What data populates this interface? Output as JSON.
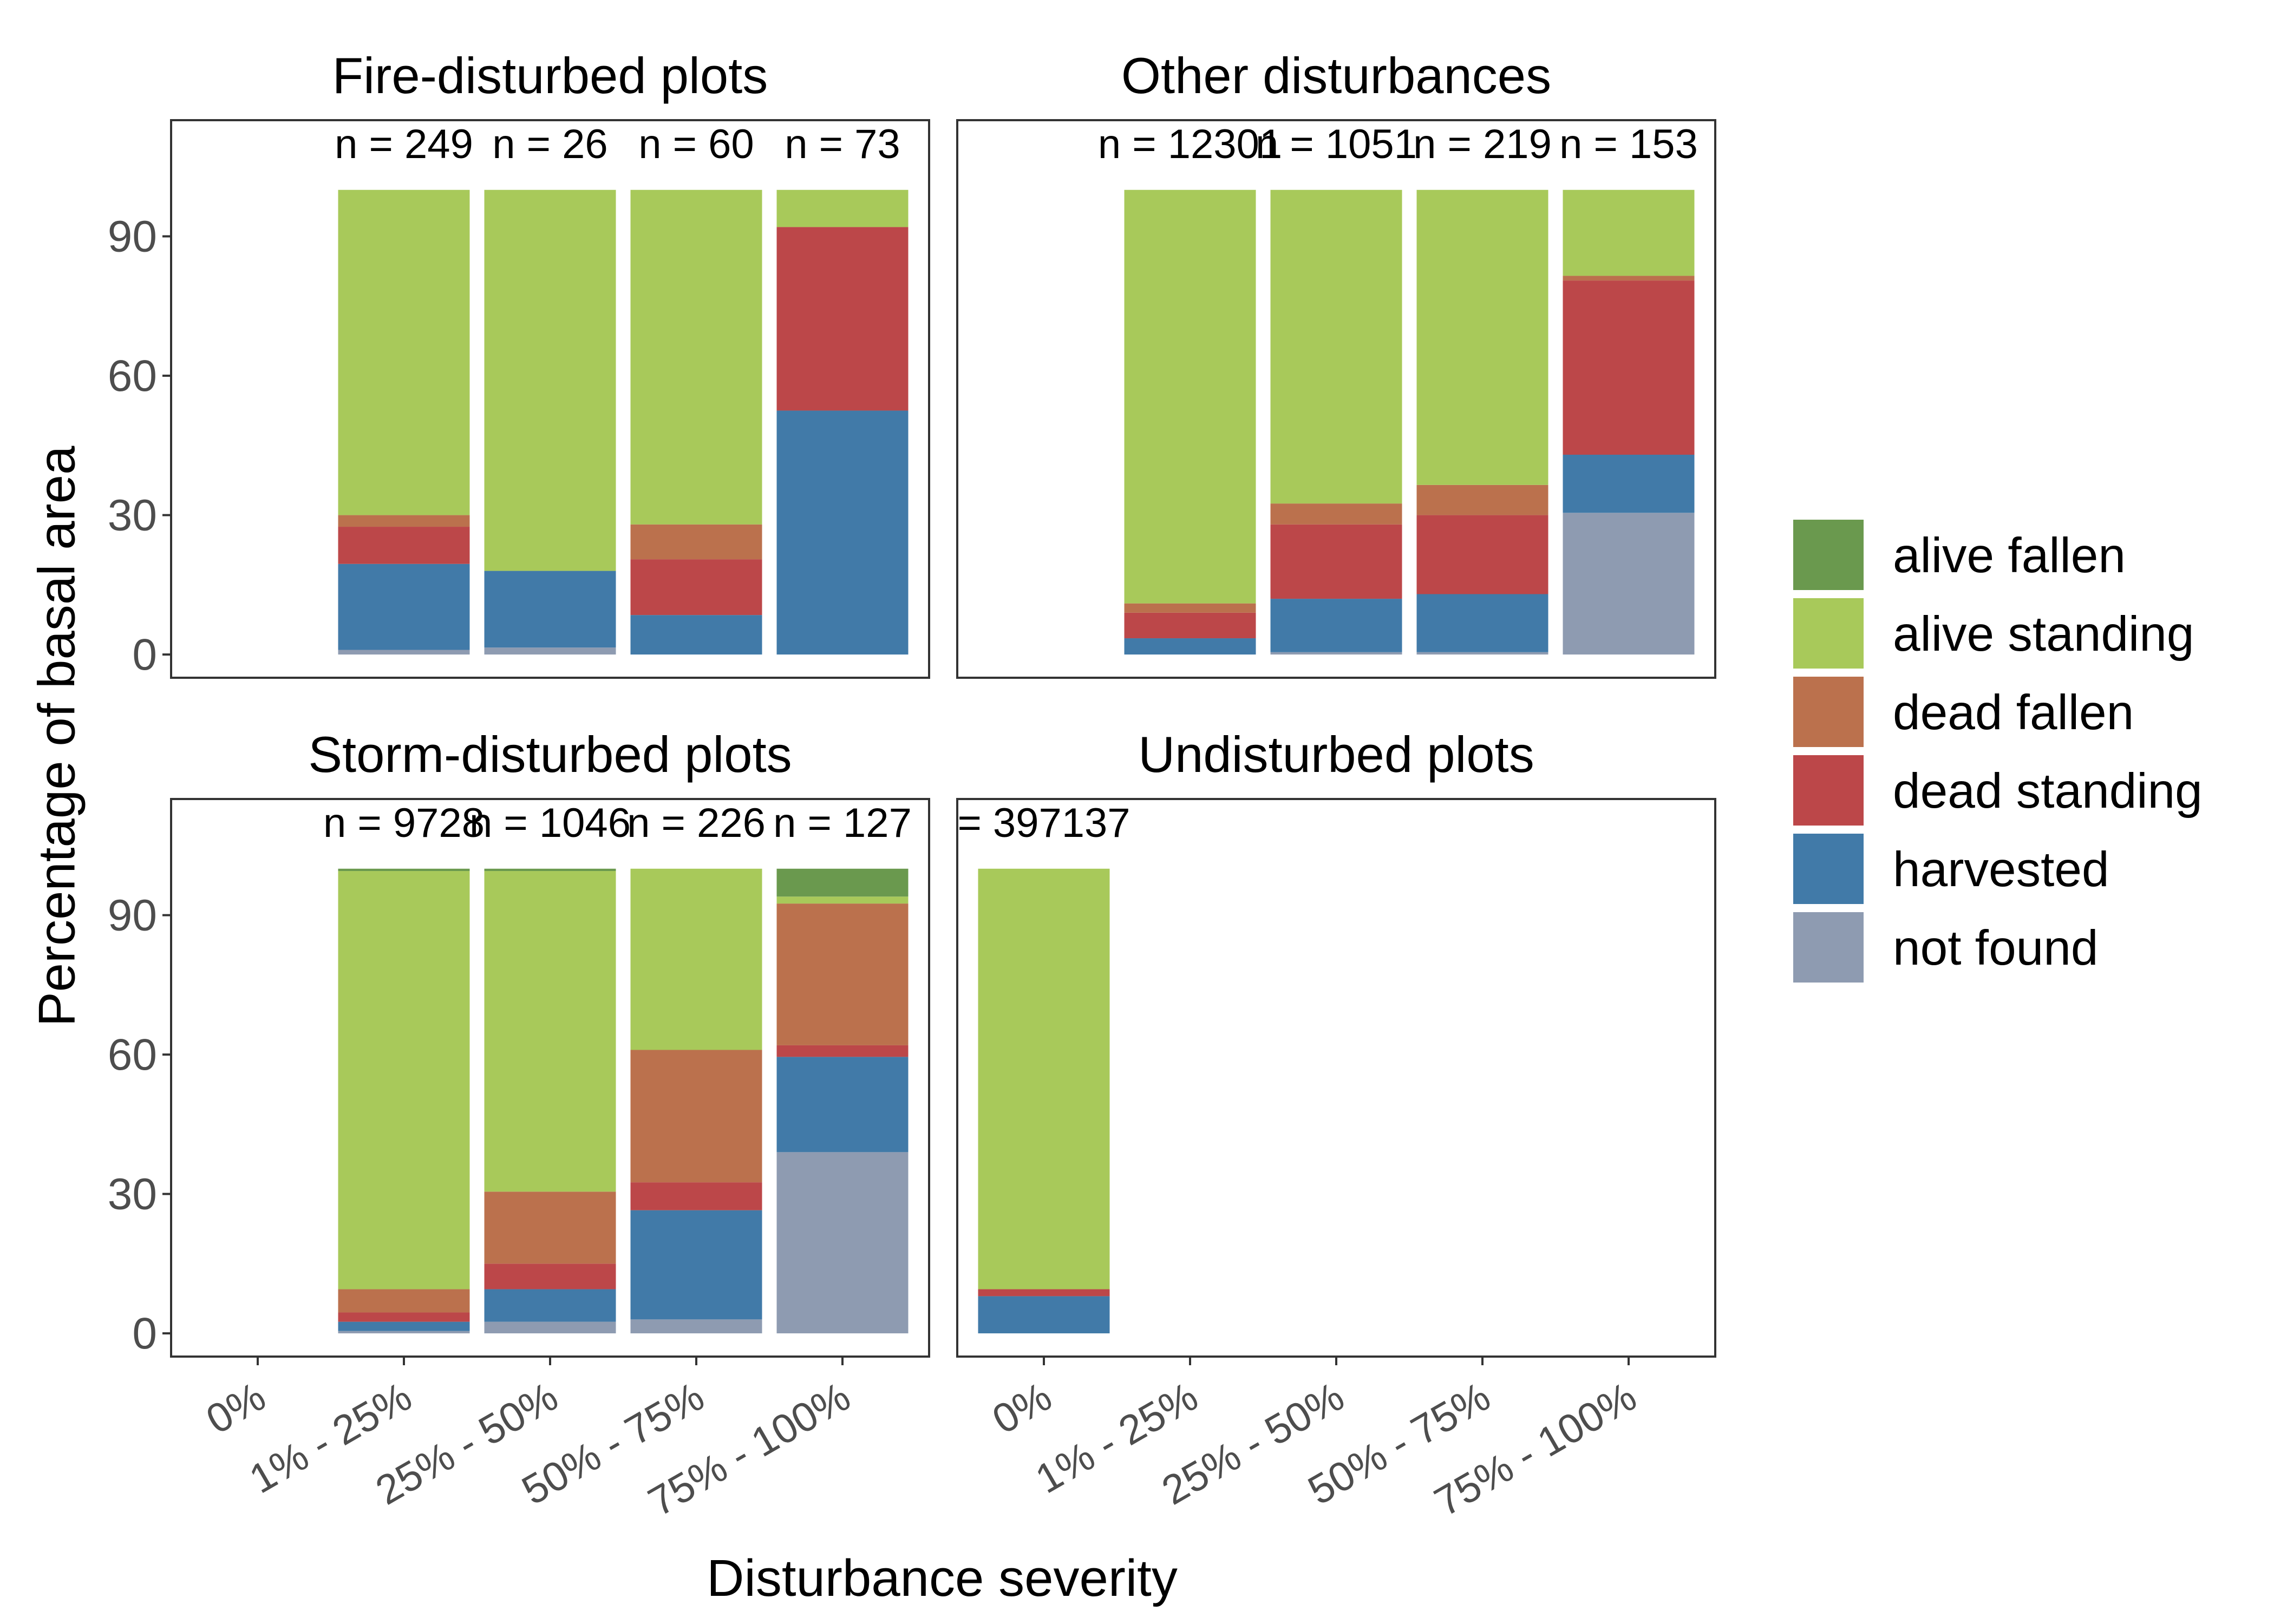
{
  "chart_data": {
    "type": "bar",
    "stacked": true,
    "xlabel": "Disturbance severity",
    "ylabel": "Percentage of basal area",
    "categories": [
      "0%",
      "1% - 25%",
      "25% - 50%",
      "50% - 75%",
      "75% - 100%"
    ],
    "ylim": [
      -5,
      115
    ],
    "yticks": [
      0,
      30,
      60,
      90
    ],
    "grid": false,
    "legend_position": "right",
    "series_order": [
      "not found",
      "harvested",
      "dead standing",
      "dead fallen",
      "alive standing",
      "alive fallen"
    ],
    "legend": [
      {
        "name": "alive fallen",
        "color": "#6a994e"
      },
      {
        "name": "alive standing",
        "color": "#a8c95a"
      },
      {
        "name": "dead fallen",
        "color": "#bb714d"
      },
      {
        "name": "dead standing",
        "color": "#bc4749"
      },
      {
        "name": "harvested",
        "color": "#417aa8"
      },
      {
        "name": "not found",
        "color": "#8e9bb1"
      }
    ],
    "panels": [
      {
        "title": "Fire-disturbed plots",
        "bars": [
          {
            "category": "1% - 25%",
            "n": "n = 249",
            "segments": {
              "not found": 1,
              "harvested": 18.5,
              "dead standing": 8,
              "dead fallen": 2.5,
              "alive standing": 70,
              "alive fallen": 0
            }
          },
          {
            "category": "25% - 50%",
            "n": "n = 26",
            "segments": {
              "not found": 1.5,
              "harvested": 16.5,
              "dead standing": 0,
              "dead fallen": 0,
              "alive standing": 82,
              "alive fallen": 0
            }
          },
          {
            "category": "50% - 75%",
            "n": "n = 60",
            "segments": {
              "not found": 0,
              "harvested": 8.5,
              "dead standing": 12,
              "dead fallen": 7.5,
              "alive standing": 72,
              "alive fallen": 0
            }
          },
          {
            "category": "75% - 100%",
            "n": "n = 73",
            "segments": {
              "not found": 0,
              "harvested": 52.5,
              "dead standing": 39.5,
              "dead fallen": 0,
              "alive standing": 8,
              "alive fallen": 0
            }
          }
        ]
      },
      {
        "title": "Other disturbances",
        "bars": [
          {
            "category": "1% - 25%",
            "n": "n = 12301",
            "segments": {
              "not found": 0,
              "harvested": 3.5,
              "dead standing": 5.5,
              "dead fallen": 2,
              "alive standing": 89,
              "alive fallen": 0
            }
          },
          {
            "category": "25% - 50%",
            "n": "n = 1051",
            "segments": {
              "not found": 0.5,
              "harvested": 11.5,
              "dead standing": 16,
              "dead fallen": 4.5,
              "alive standing": 67.5,
              "alive fallen": 0
            }
          },
          {
            "category": "50% - 75%",
            "n": "n = 219",
            "segments": {
              "not found": 0.5,
              "harvested": 12.5,
              "dead standing": 17,
              "dead fallen": 6.5,
              "alive standing": 63.5,
              "alive fallen": 0
            }
          },
          {
            "category": "75% - 100%",
            "n": "n = 153",
            "segments": {
              "not found": 30.5,
              "harvested": 12.5,
              "dead standing": 37.5,
              "dead fallen": 1,
              "alive standing": 18.5,
              "alive fallen": 0
            }
          }
        ]
      },
      {
        "title": "Storm-disturbed plots",
        "bars": [
          {
            "category": "1% - 25%",
            "n": "n = 9728",
            "segments": {
              "not found": 0.5,
              "harvested": 2,
              "dead standing": 2,
              "dead fallen": 5,
              "alive standing": 90,
              "alive fallen": 0.5
            }
          },
          {
            "category": "25% - 50%",
            "n": "n = 1046",
            "segments": {
              "not found": 2.5,
              "harvested": 7,
              "dead standing": 5.5,
              "dead fallen": 15.5,
              "alive standing": 69,
              "alive fallen": 0.5
            }
          },
          {
            "category": "50% - 75%",
            "n": "n = 226",
            "segments": {
              "not found": 3,
              "harvested": 23.5,
              "dead standing": 6,
              "dead fallen": 28.5,
              "alive standing": 39,
              "alive fallen": 0
            }
          },
          {
            "category": "75% - 100%",
            "n": "n = 127",
            "segments": {
              "not found": 39,
              "harvested": 20.5,
              "dead standing": 2.5,
              "dead fallen": 30.5,
              "alive standing": 1.5,
              "alive fallen": 6
            }
          }
        ]
      },
      {
        "title": "Undisturbed plots",
        "bars": [
          {
            "category": "0%",
            "n": "= 397137",
            "segments": {
              "not found": 0,
              "harvested": 8,
              "dead standing": 1.5,
              "dead fallen": 0,
              "alive standing": 90.5,
              "alive fallen": 0
            }
          }
        ]
      }
    ]
  }
}
